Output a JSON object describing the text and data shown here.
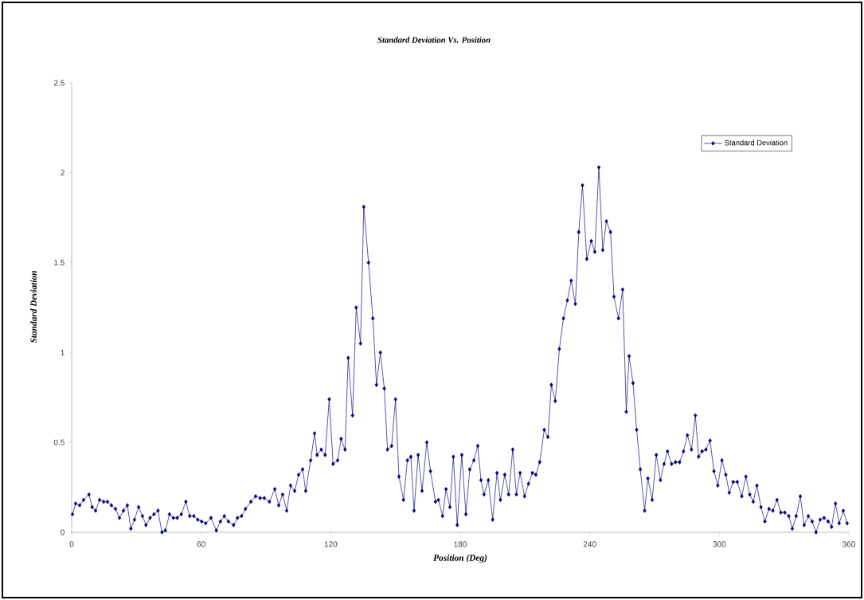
{
  "chart_data": {
    "type": "line",
    "title": "Standard Deviation Vs. Position",
    "xlabel": "Position (Deg)",
    "ylabel": "Standard Deviation",
    "x": [
      0.4,
      1.8,
      3.7,
      5.5,
      8.0,
      9.5,
      11.1,
      12.9,
      14.8,
      16.6,
      18.4,
      20.3,
      22.1,
      24.0,
      25.8,
      27.4,
      29.1,
      31.0,
      32.8,
      34.4,
      36.3,
      38.1,
      40.0,
      41.8,
      43.4,
      45.3,
      47.1,
      48.9,
      50.8,
      52.9,
      54.7,
      56.6,
      58.4,
      60.2,
      62.1,
      64.5,
      67.0,
      68.9,
      70.7,
      72.6,
      75.0,
      76.8,
      78.7,
      80.5,
      83.0,
      85.2,
      87.3,
      89.2,
      91.6,
      94.1,
      95.9,
      97.7,
      99.6,
      101.4,
      103.3,
      105.1,
      107.0,
      108.4,
      110.7,
      112.5,
      113.7,
      115.6,
      117.4,
      119.3,
      121.1,
      123.2,
      124.8,
      126.6,
      128.1,
      130.1,
      131.8,
      133.8,
      135.3,
      137.5,
      139.5,
      141.2,
      143.0,
      144.8,
      146.3,
      148.2,
      150.0,
      151.6,
      153.7,
      155.5,
      157.1,
      158.6,
      160.5,
      162.3,
      164.5,
      166.2,
      168.5,
      169.9,
      171.8,
      173.4,
      175.2,
      176.8,
      178.6,
      180.7,
      182.6,
      184.4,
      186.3,
      188.1,
      189.6,
      191.0,
      193.0,
      195.0,
      197.0,
      198.6,
      200.6,
      202.4,
      204.3,
      206.0,
      207.7,
      209.8,
      211.6,
      213.4,
      215.0,
      216.8,
      218.9,
      220.6,
      222.2,
      224.0,
      225.9,
      227.8,
      229.6,
      231.4,
      233.3,
      234.9,
      236.6,
      238.6,
      240.7,
      242.3,
      244.2,
      246.0,
      247.7,
      249.6,
      251.2,
      253.3,
      255.2,
      256.9,
      258.2,
      260.0,
      261.7,
      263.4,
      265.4,
      266.9,
      268.9,
      270.8,
      272.7,
      274.4,
      276.0,
      277.9,
      279.7,
      281.6,
      283.4,
      285.2,
      287.1,
      288.9,
      290.4,
      292.0,
      293.8,
      295.7,
      297.5,
      299.3,
      301.2,
      303.0,
      304.6,
      306.4,
      308.3,
      310.4,
      312.3,
      314.1,
      315.7,
      317.4,
      319.3,
      321.1,
      323.0,
      324.8,
      326.7,
      328.5,
      330.3,
      332.2,
      333.8,
      335.6,
      337.5,
      339.3,
      341.2,
      343.0,
      344.8,
      346.7,
      348.5,
      350.4,
      352.0,
      353.8,
      355.5,
      357.4,
      359.2
    ],
    "series": [
      {
        "name": "Standard Deviation",
        "color": "#000080",
        "values": [
          0.1,
          0.16,
          0.15,
          0.18,
          0.21,
          0.14,
          0.12,
          0.18,
          0.17,
          0.17,
          0.15,
          0.13,
          0.08,
          0.12,
          0.15,
          0.02,
          0.07,
          0.14,
          0.09,
          0.04,
          0.08,
          0.1,
          0.12,
          0.0,
          0.01,
          0.1,
          0.08,
          0.08,
          0.1,
          0.17,
          0.09,
          0.09,
          0.07,
          0.06,
          0.05,
          0.08,
          0.01,
          0.06,
          0.09,
          0.06,
          0.04,
          0.08,
          0.09,
          0.13,
          0.17,
          0.2,
          0.19,
          0.19,
          0.17,
          0.24,
          0.15,
          0.21,
          0.12,
          0.26,
          0.23,
          0.32,
          0.35,
          0.23,
          0.4,
          0.55,
          0.43,
          0.46,
          0.43,
          0.74,
          0.38,
          0.4,
          0.52,
          0.46,
          0.97,
          0.65,
          1.25,
          1.05,
          1.81,
          1.5,
          1.19,
          0.82,
          1.0,
          0.8,
          0.46,
          0.48,
          0.74,
          0.31,
          0.18,
          0.4,
          0.42,
          0.12,
          0.43,
          0.23,
          0.5,
          0.34,
          0.17,
          0.18,
          0.09,
          0.24,
          0.14,
          0.42,
          0.04,
          0.43,
          0.1,
          0.35,
          0.4,
          0.48,
          0.29,
          0.21,
          0.29,
          0.07,
          0.33,
          0.18,
          0.32,
          0.21,
          0.46,
          0.21,
          0.33,
          0.2,
          0.27,
          0.33,
          0.32,
          0.39,
          0.57,
          0.53,
          0.82,
          0.73,
          1.02,
          1.19,
          1.29,
          1.4,
          1.27,
          1.67,
          1.93,
          1.52,
          1.62,
          1.56,
          2.03,
          1.57,
          1.73,
          1.67,
          1.31,
          1.19,
          1.35,
          0.67,
          0.98,
          0.83,
          0.57,
          0.35,
          0.12,
          0.3,
          0.18,
          0.43,
          0.29,
          0.38,
          0.45,
          0.38,
          0.39,
          0.39,
          0.45,
          0.54,
          0.46,
          0.65,
          0.42,
          0.45,
          0.46,
          0.51,
          0.34,
          0.26,
          0.4,
          0.32,
          0.22,
          0.28,
          0.28,
          0.2,
          0.31,
          0.21,
          0.17,
          0.26,
          0.14,
          0.06,
          0.13,
          0.12,
          0.18,
          0.11,
          0.11,
          0.09,
          0.02,
          0.09,
          0.2,
          0.04,
          0.09,
          0.06,
          0.0,
          0.07,
          0.08,
          0.06,
          0.03,
          0.16,
          0.05,
          0.12,
          0.05
        ]
      }
    ],
    "xlim": [
      0,
      360
    ],
    "xticks": [
      0,
      60,
      120,
      180,
      240,
      300,
      360
    ],
    "ylim": [
      0,
      2.5
    ],
    "yticks": [
      0,
      0.5,
      1,
      1.5,
      2,
      2.5
    ],
    "legend": "top right",
    "marker": "diamond",
    "line_style": "solid"
  }
}
